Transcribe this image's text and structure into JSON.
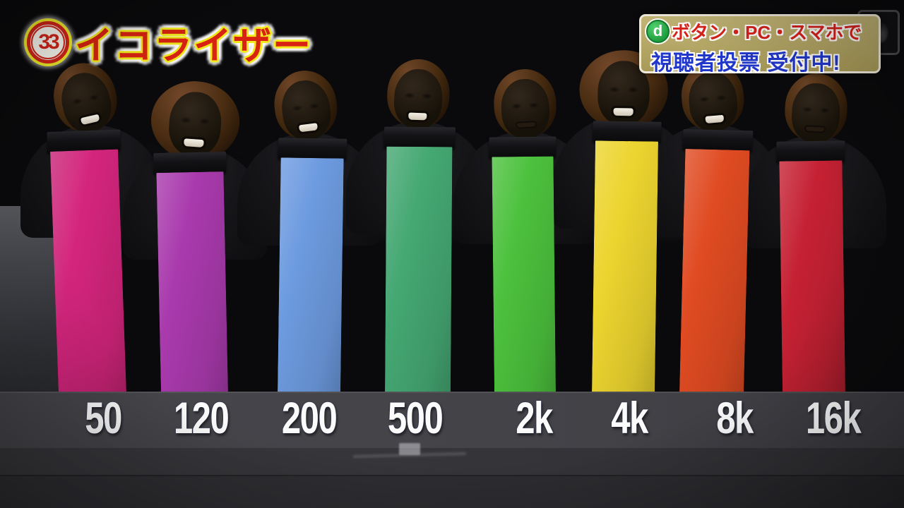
{
  "header": {
    "badge_number": "33",
    "title": "イコライザー"
  },
  "vote_banner": {
    "d_label": "d",
    "line1": "ボタン・PC・スマホで",
    "line2": "視聴者投票 受付中!"
  },
  "equalizer": {
    "band_labels": [
      "50",
      "120",
      "200",
      "500",
      "2k",
      "4k",
      "8k",
      "16k"
    ],
    "bands": [
      {
        "frequency": "50",
        "color": "#d4257d"
      },
      {
        "frequency": "120",
        "color": "#a93aad"
      },
      {
        "frequency": "200",
        "color": "#6d9be0"
      },
      {
        "frequency": "500",
        "color": "#45a873"
      },
      {
        "frequency": "2k",
        "color": "#4cc13d"
      },
      {
        "frequency": "4k",
        "color": "#ecd52f"
      },
      {
        "frequency": "8k",
        "color": "#e04b22"
      },
      {
        "frequency": "16k",
        "color": "#c52133"
      }
    ]
  }
}
